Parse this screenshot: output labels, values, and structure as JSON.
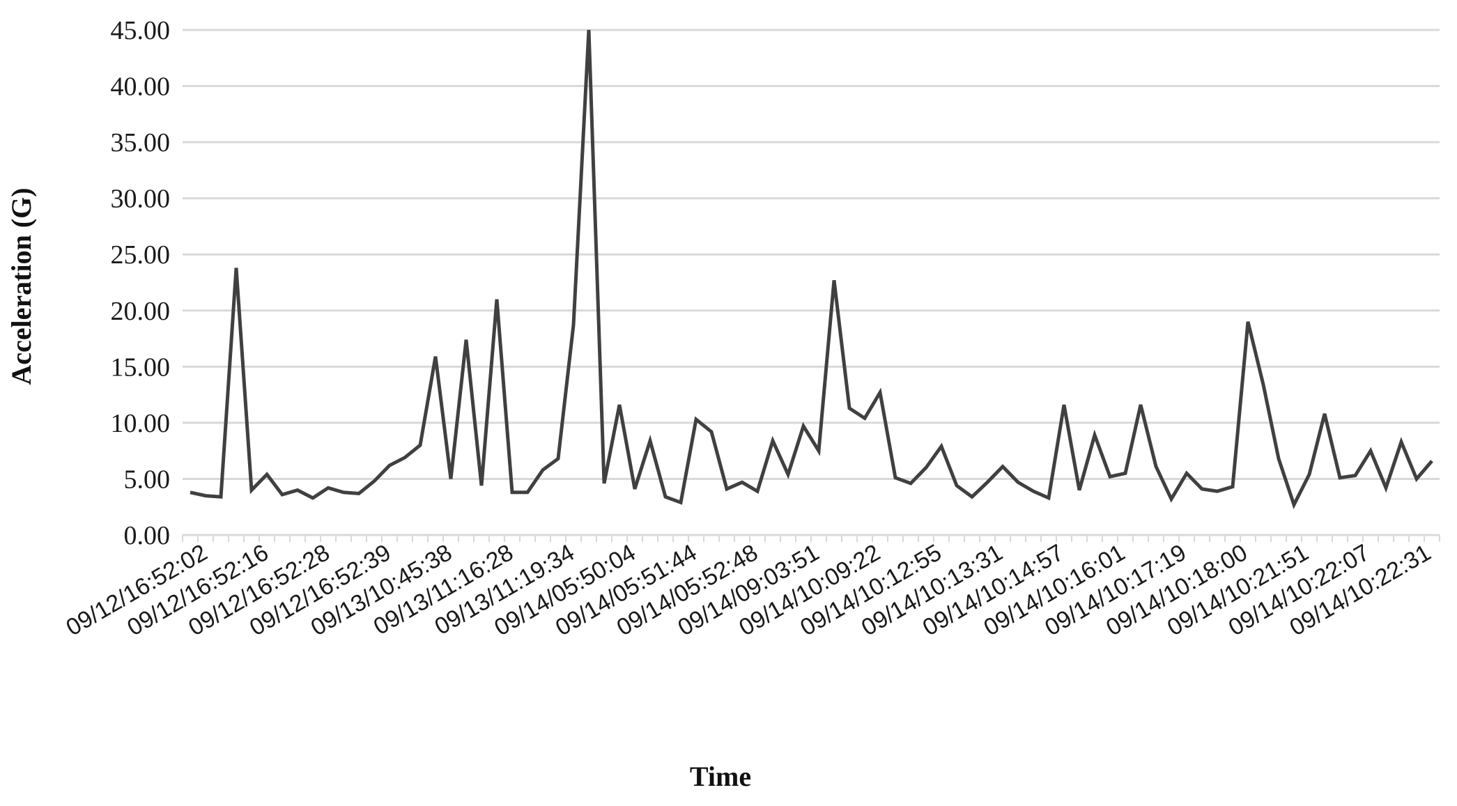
{
  "chart_data": {
    "type": "line",
    "title": "",
    "xlabel": "Time",
    "ylabel": "Acceleration (G)",
    "ylim": [
      0,
      45
    ],
    "yticks": [
      "0.00",
      "5.00",
      "10.00",
      "15.00",
      "20.00",
      "25.00",
      "30.00",
      "35.00",
      "40.00",
      "45.00"
    ],
    "x_tick_labels": [
      "09/12/16:52:02",
      "09/12/16:52:16",
      "09/12/16:52:28",
      "09/12/16:52:39",
      "09/13/10:45:38",
      "09/13/11:16:28",
      "09/13/11:19:34",
      "09/14/05:50:04",
      "09/14/05:51:44",
      "09/14/05:52:48",
      "09/14/09:03:51",
      "09/14/10:09:22",
      "09/14/10:12:55",
      "09/14/10:13:31",
      "09/14/10:14:57",
      "09/14/10:16:01",
      "09/14/10:17:19",
      "09/14/10:18:00",
      "09/14/10:21:51",
      "09/14/10:22:07",
      "09/14/10:22:31"
    ],
    "grid": "horizontal",
    "legend": "none",
    "colors": {
      "line": "#404040",
      "grid": "#d9d9d9"
    },
    "series": [
      {
        "values": [
          3.8,
          3.5,
          3.4,
          23.8,
          4.0,
          5.4,
          3.6,
          4.0,
          3.3,
          4.2,
          3.8,
          3.7,
          4.8,
          6.2,
          6.9,
          8.0,
          15.9,
          5.0,
          17.4,
          4.4,
          21.0,
          3.8,
          3.8,
          5.8,
          6.8,
          18.7,
          45.0,
          4.6,
          11.6,
          4.1,
          8.4,
          3.4,
          2.9,
          10.3,
          9.2,
          4.1,
          4.7,
          3.9,
          8.4,
          5.4,
          9.7,
          7.5,
          22.7,
          11.3,
          10.4,
          12.7,
          5.1,
          4.6,
          6.0,
          7.9,
          4.4,
          3.4,
          4.7,
          6.1,
          4.7,
          3.9,
          3.3,
          11.6,
          4.0,
          8.9,
          5.2,
          5.5,
          11.6,
          6.1,
          3.2,
          5.5,
          4.1,
          3.9,
          4.3,
          19.0,
          13.4,
          6.8,
          2.7,
          5.4,
          10.8,
          5.1,
          5.3,
          7.5,
          4.2,
          8.3,
          5.0,
          6.6
        ]
      }
    ]
  }
}
